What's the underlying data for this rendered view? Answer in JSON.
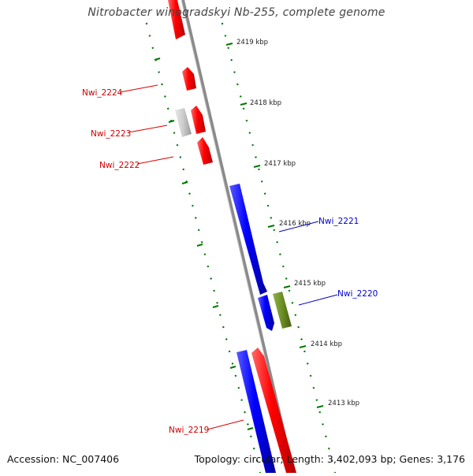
{
  "title": "Nitrobacter winogradskyi Nb-255, complete genome",
  "footer": {
    "accession": "Accession: NC_007406",
    "summary": "Topology: circular; Length: 3,402,093 bp; Genes: 3,176"
  },
  "colors": {
    "forward_gene": "#ff0000",
    "reverse_gene": "#0000ff",
    "other_gene": "#cccccc",
    "rna_gene": "#6b8e23",
    "tick": "#007700",
    "backbone": "#888888"
  },
  "scale_labels": [
    "2419 kbp",
    "2418 kbp",
    "2417 kbp",
    "2416 kbp",
    "2415 kbp",
    "2414 kbp",
    "2413 kbp"
  ],
  "gene_labels": [
    {
      "id": "lbl-2224",
      "text": "Nwi_2224",
      "strand": "forward"
    },
    {
      "id": "lbl-2223",
      "text": "Nwi_2223",
      "strand": "forward"
    },
    {
      "id": "lbl-2222",
      "text": "Nwi_2222",
      "strand": "forward"
    },
    {
      "id": "lbl-2221",
      "text": "Nwi_2221",
      "strand": "reverse"
    },
    {
      "id": "lbl-2220",
      "text": "Nwi_2220",
      "strand": "reverse"
    },
    {
      "id": "lbl-2219",
      "text": "Nwi_2219",
      "strand": "forward"
    }
  ]
}
